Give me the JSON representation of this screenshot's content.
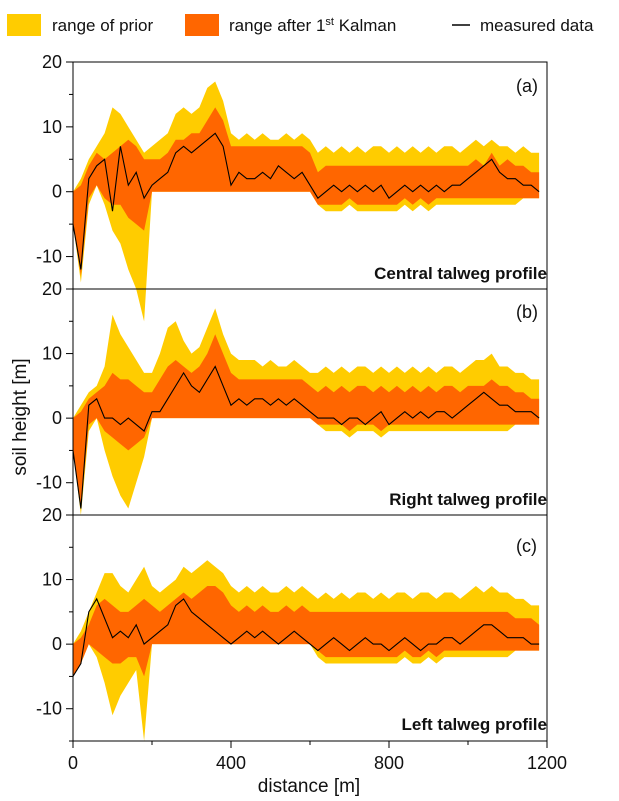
{
  "chart_data": {
    "type": "area",
    "xlabel": "distance [m]",
    "ylabel": "soil height [m]",
    "xlim": [
      0,
      1200
    ],
    "x_ticks": [
      0,
      400,
      800,
      1200
    ],
    "ylim": [
      -15,
      20
    ],
    "y_ticks": [
      -10,
      0,
      10,
      20
    ],
    "grid": false,
    "legend_placement": "top",
    "legend": [
      {
        "label": "range of prior",
        "color": "#ffcc00",
        "kind": "area"
      },
      {
        "label": "range after 1st Kalman",
        "color": "#ff6600",
        "kind": "area"
      },
      {
        "label": "measured data",
        "color": "#000000",
        "kind": "line"
      }
    ],
    "panels": [
      {
        "label": "(a)",
        "title": "Central talweg profile",
        "x": [
          0,
          20,
          40,
          60,
          80,
          100,
          120,
          140,
          160,
          180,
          200,
          220,
          240,
          260,
          280,
          300,
          320,
          340,
          360,
          380,
          400,
          420,
          440,
          460,
          480,
          500,
          520,
          540,
          560,
          580,
          600,
          620,
          640,
          660,
          680,
          700,
          720,
          740,
          760,
          780,
          800,
          820,
          840,
          860,
          880,
          900,
          920,
          940,
          960,
          980,
          1000,
          1020,
          1040,
          1060,
          1080,
          1100,
          1120,
          1140,
          1160,
          1180
        ],
        "prior_low": [
          -5,
          -14,
          -2,
          1,
          -2,
          -6,
          -8,
          -12,
          -15,
          -20,
          0,
          0,
          0,
          0,
          0,
          0,
          0,
          0,
          0,
          0,
          0,
          0,
          0,
          0,
          0,
          0,
          0,
          0,
          0,
          0,
          0,
          -2,
          -3,
          -3,
          -3,
          -2,
          -3,
          -3,
          -3,
          -3,
          -3,
          -3,
          -2,
          -3,
          -2,
          -3,
          -2,
          -2,
          -2,
          -2,
          -2,
          -2,
          -2,
          -2,
          -2,
          -2,
          -2,
          -1,
          -1,
          -1
        ],
        "prior_high": [
          0,
          2,
          5,
          7,
          9,
          13,
          12,
          10,
          8,
          6,
          7,
          8,
          9,
          12,
          13,
          12,
          13,
          16,
          17,
          14,
          9,
          8,
          9,
          8,
          9,
          8,
          8,
          9,
          8,
          9,
          8,
          6,
          7,
          6,
          7,
          6,
          7,
          6,
          7,
          7,
          6,
          7,
          6,
          7,
          6,
          7,
          6,
          7,
          7,
          6,
          7,
          8,
          7,
          8,
          7,
          7,
          6,
          7,
          6,
          6
        ],
        "after_low": [
          -5,
          -13,
          -1,
          1,
          -1,
          -2,
          -2,
          -4,
          -5,
          -6,
          0,
          0,
          0,
          0,
          0,
          0,
          0,
          0,
          0,
          0,
          0,
          0,
          0,
          0,
          0,
          0,
          0,
          0,
          0,
          0,
          0,
          -2,
          -2,
          -2,
          -2,
          -1,
          -2,
          -2,
          -2,
          -2,
          -2,
          -2,
          -1,
          -2,
          -1,
          -2,
          -1,
          -1,
          -1,
          -1,
          -1,
          -1,
          -1,
          -1,
          -1,
          -1,
          -1,
          -1,
          -1,
          -1
        ],
        "after_high": [
          0,
          1,
          4,
          6,
          5,
          6,
          7,
          8,
          7,
          5,
          5,
          5,
          6,
          8,
          8,
          9,
          9,
          11,
          13,
          11,
          7,
          7,
          7,
          7,
          7,
          7,
          7,
          7,
          7,
          7,
          6,
          3,
          4,
          4,
          4,
          4,
          4,
          4,
          4,
          4,
          4,
          4,
          4,
          4,
          4,
          4,
          4,
          4,
          4,
          4,
          4,
          5,
          4,
          6,
          4,
          5,
          4,
          4,
          3,
          3
        ],
        "measured": [
          -5,
          -12,
          2,
          4,
          5,
          -3,
          7,
          1,
          3,
          -1,
          1,
          2,
          3,
          6,
          7,
          6,
          7,
          8,
          9,
          7,
          1,
          3,
          2,
          2,
          3,
          2,
          4,
          3,
          2,
          3,
          1,
          -1,
          0,
          1,
          0,
          1,
          0,
          1,
          0,
          1,
          -1,
          0,
          1,
          0,
          1,
          0,
          1,
          0,
          1,
          1,
          2,
          3,
          4,
          5,
          3,
          2,
          2,
          1,
          1,
          0
        ]
      },
      {
        "label": "(b)",
        "title": "Right talweg profile",
        "x": [
          0,
          20,
          40,
          60,
          80,
          100,
          120,
          140,
          160,
          180,
          200,
          220,
          240,
          260,
          280,
          300,
          320,
          340,
          360,
          380,
          400,
          420,
          440,
          460,
          480,
          500,
          520,
          540,
          560,
          580,
          600,
          620,
          640,
          660,
          680,
          700,
          720,
          740,
          760,
          780,
          800,
          820,
          840,
          860,
          880,
          900,
          920,
          940,
          960,
          980,
          1000,
          1020,
          1040,
          1060,
          1080,
          1100,
          1120,
          1140,
          1160,
          1180
        ],
        "prior_low": [
          -5,
          -15,
          -2,
          0,
          -5,
          -9,
          -12,
          -14,
          -10,
          -6,
          0,
          0,
          0,
          0,
          0,
          0,
          0,
          0,
          0,
          0,
          0,
          0,
          0,
          0,
          0,
          0,
          0,
          0,
          0,
          0,
          0,
          -1,
          -2,
          -2,
          -2,
          -3,
          -2,
          -2,
          -2,
          -3,
          -2,
          -2,
          -2,
          -2,
          -2,
          -2,
          -2,
          -2,
          -2,
          -2,
          -2,
          -2,
          -2,
          -2,
          -2,
          -2,
          -1,
          -1,
          -1,
          -1
        ],
        "prior_high": [
          0,
          2,
          4,
          5,
          8,
          16,
          13,
          11,
          9,
          7,
          7,
          10,
          14,
          15,
          12,
          10,
          11,
          14,
          17,
          13,
          10,
          9,
          9,
          9,
          8,
          9,
          8,
          8,
          9,
          8,
          7,
          7,
          8,
          7,
          8,
          7,
          8,
          8,
          7,
          8,
          7,
          8,
          7,
          8,
          7,
          8,
          7,
          8,
          8,
          7,
          8,
          9,
          9,
          10,
          8,
          8,
          7,
          7,
          6,
          6
        ],
        "after_low": [
          -5,
          -14,
          -1,
          0,
          -2,
          -3,
          -4,
          -5,
          -4,
          -3,
          0,
          0,
          0,
          0,
          0,
          0,
          0,
          0,
          0,
          0,
          0,
          0,
          0,
          0,
          0,
          0,
          0,
          0,
          0,
          0,
          0,
          -1,
          -1,
          -1,
          -1,
          -2,
          -1,
          -1,
          -1,
          -2,
          -1,
          -1,
          -1,
          -1,
          -1,
          -1,
          -1,
          -1,
          -1,
          -1,
          -1,
          -1,
          -1,
          -1,
          -1,
          -1,
          -1,
          -1,
          -1,
          -1
        ],
        "after_high": [
          0,
          1,
          3,
          4,
          5,
          7,
          6,
          6,
          5,
          4,
          4,
          6,
          8,
          9,
          8,
          7,
          8,
          10,
          13,
          10,
          7,
          6,
          6,
          6,
          6,
          6,
          6,
          6,
          6,
          6,
          5,
          4,
          5,
          4,
          5,
          4,
          5,
          5,
          4,
          5,
          4,
          5,
          4,
          5,
          4,
          5,
          4,
          5,
          5,
          4,
          5,
          5,
          5,
          6,
          5,
          5,
          4,
          4,
          3,
          3
        ],
        "measured": [
          -5,
          -14,
          2,
          3,
          0,
          0,
          -1,
          0,
          -1,
          -2,
          1,
          1,
          3,
          5,
          7,
          5,
          4,
          6,
          8,
          5,
          2,
          3,
          2,
          3,
          3,
          2,
          3,
          2,
          3,
          2,
          1,
          0,
          0,
          0,
          -1,
          0,
          0,
          -1,
          0,
          1,
          -1,
          0,
          1,
          0,
          1,
          0,
          1,
          1,
          0,
          1,
          2,
          3,
          4,
          3,
          2,
          2,
          1,
          1,
          1,
          0
        ]
      },
      {
        "label": "(c)",
        "title": "Left talweg profile",
        "x": [
          0,
          20,
          40,
          60,
          80,
          100,
          120,
          140,
          160,
          180,
          200,
          220,
          240,
          260,
          280,
          300,
          320,
          340,
          360,
          380,
          400,
          420,
          440,
          460,
          480,
          500,
          520,
          540,
          560,
          580,
          600,
          620,
          640,
          660,
          680,
          700,
          720,
          740,
          760,
          780,
          800,
          820,
          840,
          860,
          880,
          900,
          920,
          940,
          960,
          980,
          1000,
          1020,
          1040,
          1060,
          1080,
          1100,
          1120,
          1140,
          1160,
          1180
        ],
        "prior_low": [
          -5,
          -3,
          0,
          -2,
          -6,
          -11,
          -8,
          -6,
          -4,
          -15,
          0,
          0,
          0,
          0,
          0,
          0,
          0,
          0,
          0,
          0,
          0,
          0,
          0,
          0,
          0,
          0,
          0,
          0,
          0,
          0,
          0,
          -2,
          -3,
          -3,
          -3,
          -3,
          -3,
          -3,
          -3,
          -3,
          -3,
          -3,
          -2,
          -3,
          -3,
          -2,
          -3,
          -2,
          -2,
          -2,
          -2,
          -2,
          -2,
          -2,
          -2,
          -2,
          -1,
          -1,
          -1,
          -1
        ],
        "prior_high": [
          0,
          2,
          5,
          8,
          11,
          11,
          9,
          8,
          10,
          12,
          9,
          8,
          9,
          10,
          12,
          11,
          12,
          13,
          12,
          11,
          9,
          8,
          9,
          8,
          9,
          8,
          8,
          9,
          8,
          9,
          8,
          7,
          8,
          7,
          8,
          7,
          8,
          8,
          7,
          8,
          7,
          8,
          8,
          7,
          8,
          8,
          7,
          8,
          8,
          7,
          8,
          9,
          8,
          9,
          8,
          8,
          7,
          7,
          6,
          6
        ],
        "after_low": [
          -5,
          -3,
          0,
          -1,
          -2,
          -3,
          -3,
          -2,
          -2,
          -5,
          0,
          0,
          0,
          0,
          0,
          0,
          0,
          0,
          0,
          0,
          0,
          0,
          0,
          0,
          0,
          0,
          0,
          0,
          0,
          0,
          0,
          -1,
          -2,
          -2,
          -2,
          -2,
          -2,
          -2,
          -2,
          -2,
          -2,
          -2,
          -1,
          -2,
          -2,
          -1,
          -2,
          -1,
          -1,
          -1,
          -1,
          -1,
          -1,
          -1,
          -1,
          -1,
          -1,
          -1,
          -1,
          -1
        ],
        "after_high": [
          0,
          1,
          3,
          6,
          7,
          6,
          5,
          5,
          6,
          7,
          6,
          5,
          6,
          7,
          8,
          7,
          8,
          9,
          9,
          8,
          6,
          5,
          6,
          5,
          6,
          5,
          5,
          6,
          5,
          6,
          5,
          5,
          5,
          5,
          5,
          5,
          5,
          5,
          5,
          5,
          5,
          5,
          5,
          5,
          5,
          5,
          5,
          5,
          5,
          5,
          5,
          5,
          5,
          5,
          5,
          5,
          4,
          4,
          4,
          3
        ],
        "measured": [
          -5,
          -3,
          5,
          7,
          4,
          1,
          2,
          1,
          3,
          0,
          1,
          2,
          3,
          6,
          7,
          5,
          4,
          3,
          2,
          1,
          0,
          1,
          2,
          1,
          2,
          1,
          0,
          1,
          2,
          1,
          0,
          -1,
          0,
          1,
          0,
          -1,
          0,
          1,
          0,
          0,
          -1,
          0,
          1,
          0,
          -1,
          0,
          0,
          1,
          1,
          0,
          1,
          2,
          3,
          3,
          2,
          1,
          1,
          1,
          0,
          0
        ]
      }
    ]
  }
}
